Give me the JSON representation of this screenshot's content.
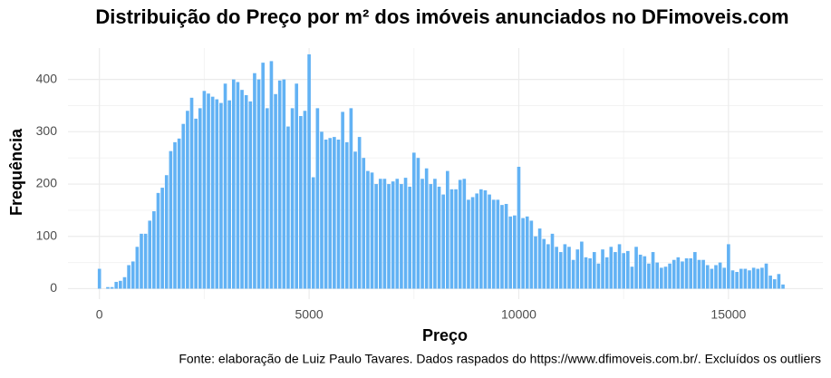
{
  "chart_data": {
    "type": "histogram",
    "title": "Distribuição do Preço por m² dos imóveis anunciados no DFimoveis.com",
    "x_label": "Preço",
    "y_label": "Frequência",
    "caption": "Fonte: elaboração de Luiz Paulo Tavares. Dados raspados do https://www.dfimoveis.com.br/. Excluídos os outliers",
    "color": "#62b2f4",
    "grid": true,
    "xlim": [
      -750,
      17250
    ],
    "ylim": [
      -20,
      460
    ],
    "xticks": [
      0,
      5000,
      10000,
      15000
    ],
    "yticks": [
      0,
      100,
      200,
      300,
      400
    ],
    "bins": [
      -50,
      50,
      150,
      250,
      350,
      450,
      550,
      650,
      750,
      850,
      950,
      1050,
      1150,
      1250,
      1350,
      1450,
      1550,
      1650,
      1750,
      1850,
      1950,
      2050,
      2150,
      2250,
      2350,
      2450,
      2550,
      2650,
      2750,
      2850,
      2950,
      3050,
      3150,
      3250,
      3350,
      3450,
      3550,
      3650,
      3750,
      3850,
      3950,
      4050,
      4150,
      4250,
      4350,
      4450,
      4550,
      4650,
      4750,
      4850,
      4950,
      5050,
      5150,
      5250,
      5350,
      5450,
      5550,
      5650,
      5750,
      5850,
      5950,
      6050,
      6150,
      6250,
      6350,
      6450,
      6550,
      6650,
      6750,
      6850,
      6950,
      7050,
      7150,
      7250,
      7350,
      7450,
      7550,
      7650,
      7750,
      7850,
      7950,
      8050,
      8150,
      8250,
      8350,
      8450,
      8550,
      8650,
      8750,
      8850,
      8950,
      9050,
      9150,
      9250,
      9350,
      9450,
      9550,
      9650,
      9750,
      9850,
      9950,
      10050,
      10150,
      10250,
      10350,
      10450,
      10550,
      10650,
      10750,
      10850,
      10950,
      11050,
      11150,
      11250,
      11350,
      11450,
      11550,
      11650,
      11750,
      11850,
      11950,
      12050,
      12150,
      12250,
      12350,
      12450,
      12550,
      12650,
      12750,
      12850,
      12950,
      13050,
      13150,
      13250,
      13350,
      13450,
      13550,
      13650,
      13750,
      13850,
      13950,
      14050,
      14150,
      14250,
      14350,
      14450,
      14550,
      14650,
      14750,
      14850,
      14950,
      15050,
      15150,
      15250,
      15350,
      15450,
      15550,
      15650,
      15750,
      15850,
      15950,
      16050,
      16150,
      16250,
      16350
    ],
    "values": [
      38,
      0,
      3,
      3,
      13,
      15,
      22,
      45,
      52,
      80,
      105,
      105,
      130,
      148,
      183,
      193,
      217,
      263,
      280,
      287,
      315,
      340,
      365,
      325,
      345,
      378,
      373,
      367,
      362,
      355,
      392,
      360,
      400,
      395,
      380,
      370,
      358,
      412,
      400,
      432,
      345,
      435,
      372,
      398,
      400,
      310,
      345,
      392,
      330,
      340,
      448,
      213,
      345,
      300,
      285,
      288,
      290,
      285,
      338,
      280,
      345,
      262,
      290,
      250,
      225,
      222,
      200,
      210,
      210,
      200,
      205,
      210,
      200,
      212,
      195,
      260,
      250,
      210,
      230,
      200,
      210,
      195,
      180,
      225,
      190,
      190,
      208,
      210,
      170,
      175,
      182,
      190,
      188,
      180,
      170,
      170,
      160,
      162,
      138,
      140,
      233,
      135,
      138,
      130,
      100,
      115,
      95,
      85,
      105,
      80,
      70,
      85,
      80,
      55,
      75,
      90,
      60,
      58,
      70,
      48,
      75,
      60,
      80,
      70,
      85,
      68,
      72,
      42,
      80,
      65,
      62,
      48,
      70,
      50,
      40,
      42,
      48,
      55,
      60,
      52,
      58,
      58,
      70,
      55,
      55,
      45,
      38,
      45,
      50,
      40,
      85,
      35,
      32,
      38,
      38,
      35,
      40,
      38,
      40,
      48,
      25,
      18,
      28,
      8
    ]
  }
}
